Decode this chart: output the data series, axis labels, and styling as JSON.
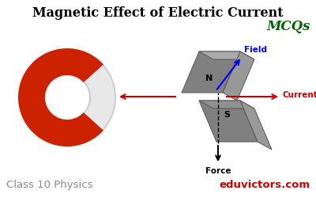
{
  "bg_color": "#ffffff",
  "title_text": "Magnetic Effect of Electric Current",
  "title_color": "#000000",
  "title_fontsize": 11.5,
  "mcqs_text": "MCQs",
  "mcqs_color": "#006400",
  "mcqs_fontsize": 12,
  "class_text": "Class 10 Physics",
  "class_color": "#888888",
  "class_fontsize": 9.5,
  "site_text": "eduvictors.com",
  "site_color": "#cc0000",
  "site_fontsize": 9.5,
  "field_label": "Field",
  "field_color": "#0000ff",
  "current_label": "Current",
  "current_color": "#cc0000",
  "force_label": "Force",
  "force_color": "#000000",
  "n_label": "N",
  "s_label": "S",
  "horseshoe_red": "#cc2200",
  "horseshoe_grey": "#cccccc",
  "magnet_front": "#808080",
  "magnet_top": "#aaaaaa",
  "magnet_right": "#999999",
  "magnet_edge": "#555555"
}
